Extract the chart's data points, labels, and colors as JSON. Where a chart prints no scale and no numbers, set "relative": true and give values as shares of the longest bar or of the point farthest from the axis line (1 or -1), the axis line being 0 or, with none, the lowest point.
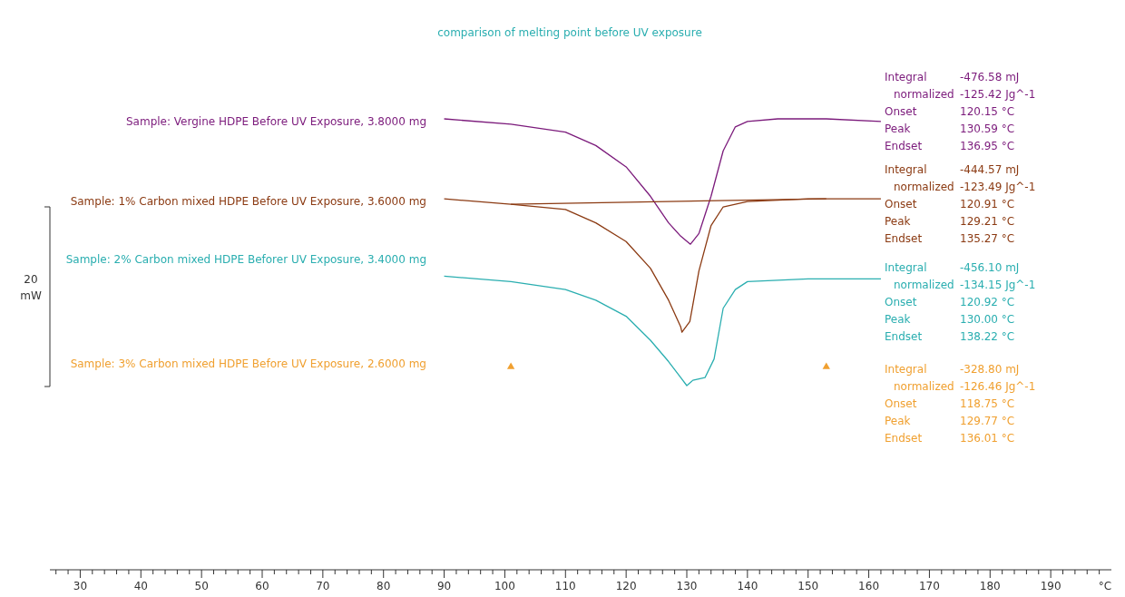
{
  "chart_data": {
    "type": "line",
    "relative": true,
    "title": "comparison of melting point before UV exposure",
    "xlabel": "°C",
    "xlim": [
      25,
      200
    ],
    "xticks": [
      30,
      40,
      50,
      60,
      70,
      80,
      90,
      100,
      110,
      120,
      130,
      140,
      150,
      160,
      170,
      180,
      190
    ],
    "legend": false,
    "grid": false,
    "series": [
      {
        "name": "Sample: Vergine HDPE Before UV Exposure, 3.8000 mg",
        "color": "#7b1a7b",
        "x": [
          90,
          101,
          110,
          115,
          120,
          124,
          127,
          129,
          130.6,
          132,
          134,
          136,
          138,
          140,
          145,
          153,
          162
        ],
        "values": [
          1.0,
          0.98,
          0.95,
          0.9,
          0.82,
          0.71,
          0.61,
          0.56,
          0.53,
          0.57,
          0.71,
          0.88,
          0.97,
          0.99,
          1.0,
          1.0,
          0.99
        ]
      },
      {
        "name": "Sample: 1% Carbon mixed HDPE Before UV Exposure, 3.6000 mg",
        "color": "#8b3a12",
        "x": [
          90,
          101,
          110,
          115,
          120,
          124,
          127,
          129,
          129.2,
          130.5,
          132,
          134,
          136,
          140,
          150,
          162
        ],
        "values": [
          0.7,
          0.68,
          0.66,
          0.61,
          0.54,
          0.44,
          0.32,
          0.22,
          0.2,
          0.24,
          0.43,
          0.6,
          0.67,
          0.69,
          0.7,
          0.7
        ]
      },
      {
        "color": "#8b3a12",
        "x": [
          101,
          153
        ],
        "values": [
          0.68,
          0.7
        ]
      },
      {
        "name": "Sample: 2% Carbon mixed HDPE Beforer UV Exposure, 3.4000 mg",
        "color": "#2aaeb0",
        "x": [
          90,
          101,
          110,
          115,
          120,
          124,
          127,
          129,
          130,
          131,
          133,
          134.5,
          136,
          138,
          140,
          150,
          162
        ],
        "values": [
          0.41,
          0.39,
          0.36,
          0.32,
          0.26,
          0.17,
          0.09,
          0.03,
          0.0,
          0.02,
          0.03,
          0.1,
          0.29,
          0.36,
          0.39,
          0.4,
          0.4
        ]
      },
      {
        "name": "Sample: 3% Carbon mixed HDPE Before UV Exposure, 2.6000 mg",
        "color": "#f0a030",
        "type": "scatter",
        "marker": "triangle",
        "x": [
          101,
          153
        ],
        "values": [
          0.07,
          0.07
        ]
      }
    ],
    "annotations": [
      "20 mW",
      "Integral -476.58 mJ",
      "normalized -125.42 Jg^-1",
      "Onset 120.15 °C",
      "Peak 130.59 °C",
      "Endset 136.95 °C",
      "Integral -444.57 mJ",
      "normalized -123.49 Jg^-1",
      "Onset 120.91 °C",
      "Peak 129.21 °C",
      "Endset 135.27 °C",
      "Integral -456.10 mJ",
      "normalized -134.15 Jg^-1",
      "Onset 120.92 °C",
      "Peak 130.00 °C",
      "Endset 138.22 °C",
      "Integral -328.80 mJ",
      "normalized -126.46 Jg^-1",
      "Onset 118.75 °C",
      "Peak 129.77 °C",
      "Endset 136.01 °C"
    ]
  }
}
